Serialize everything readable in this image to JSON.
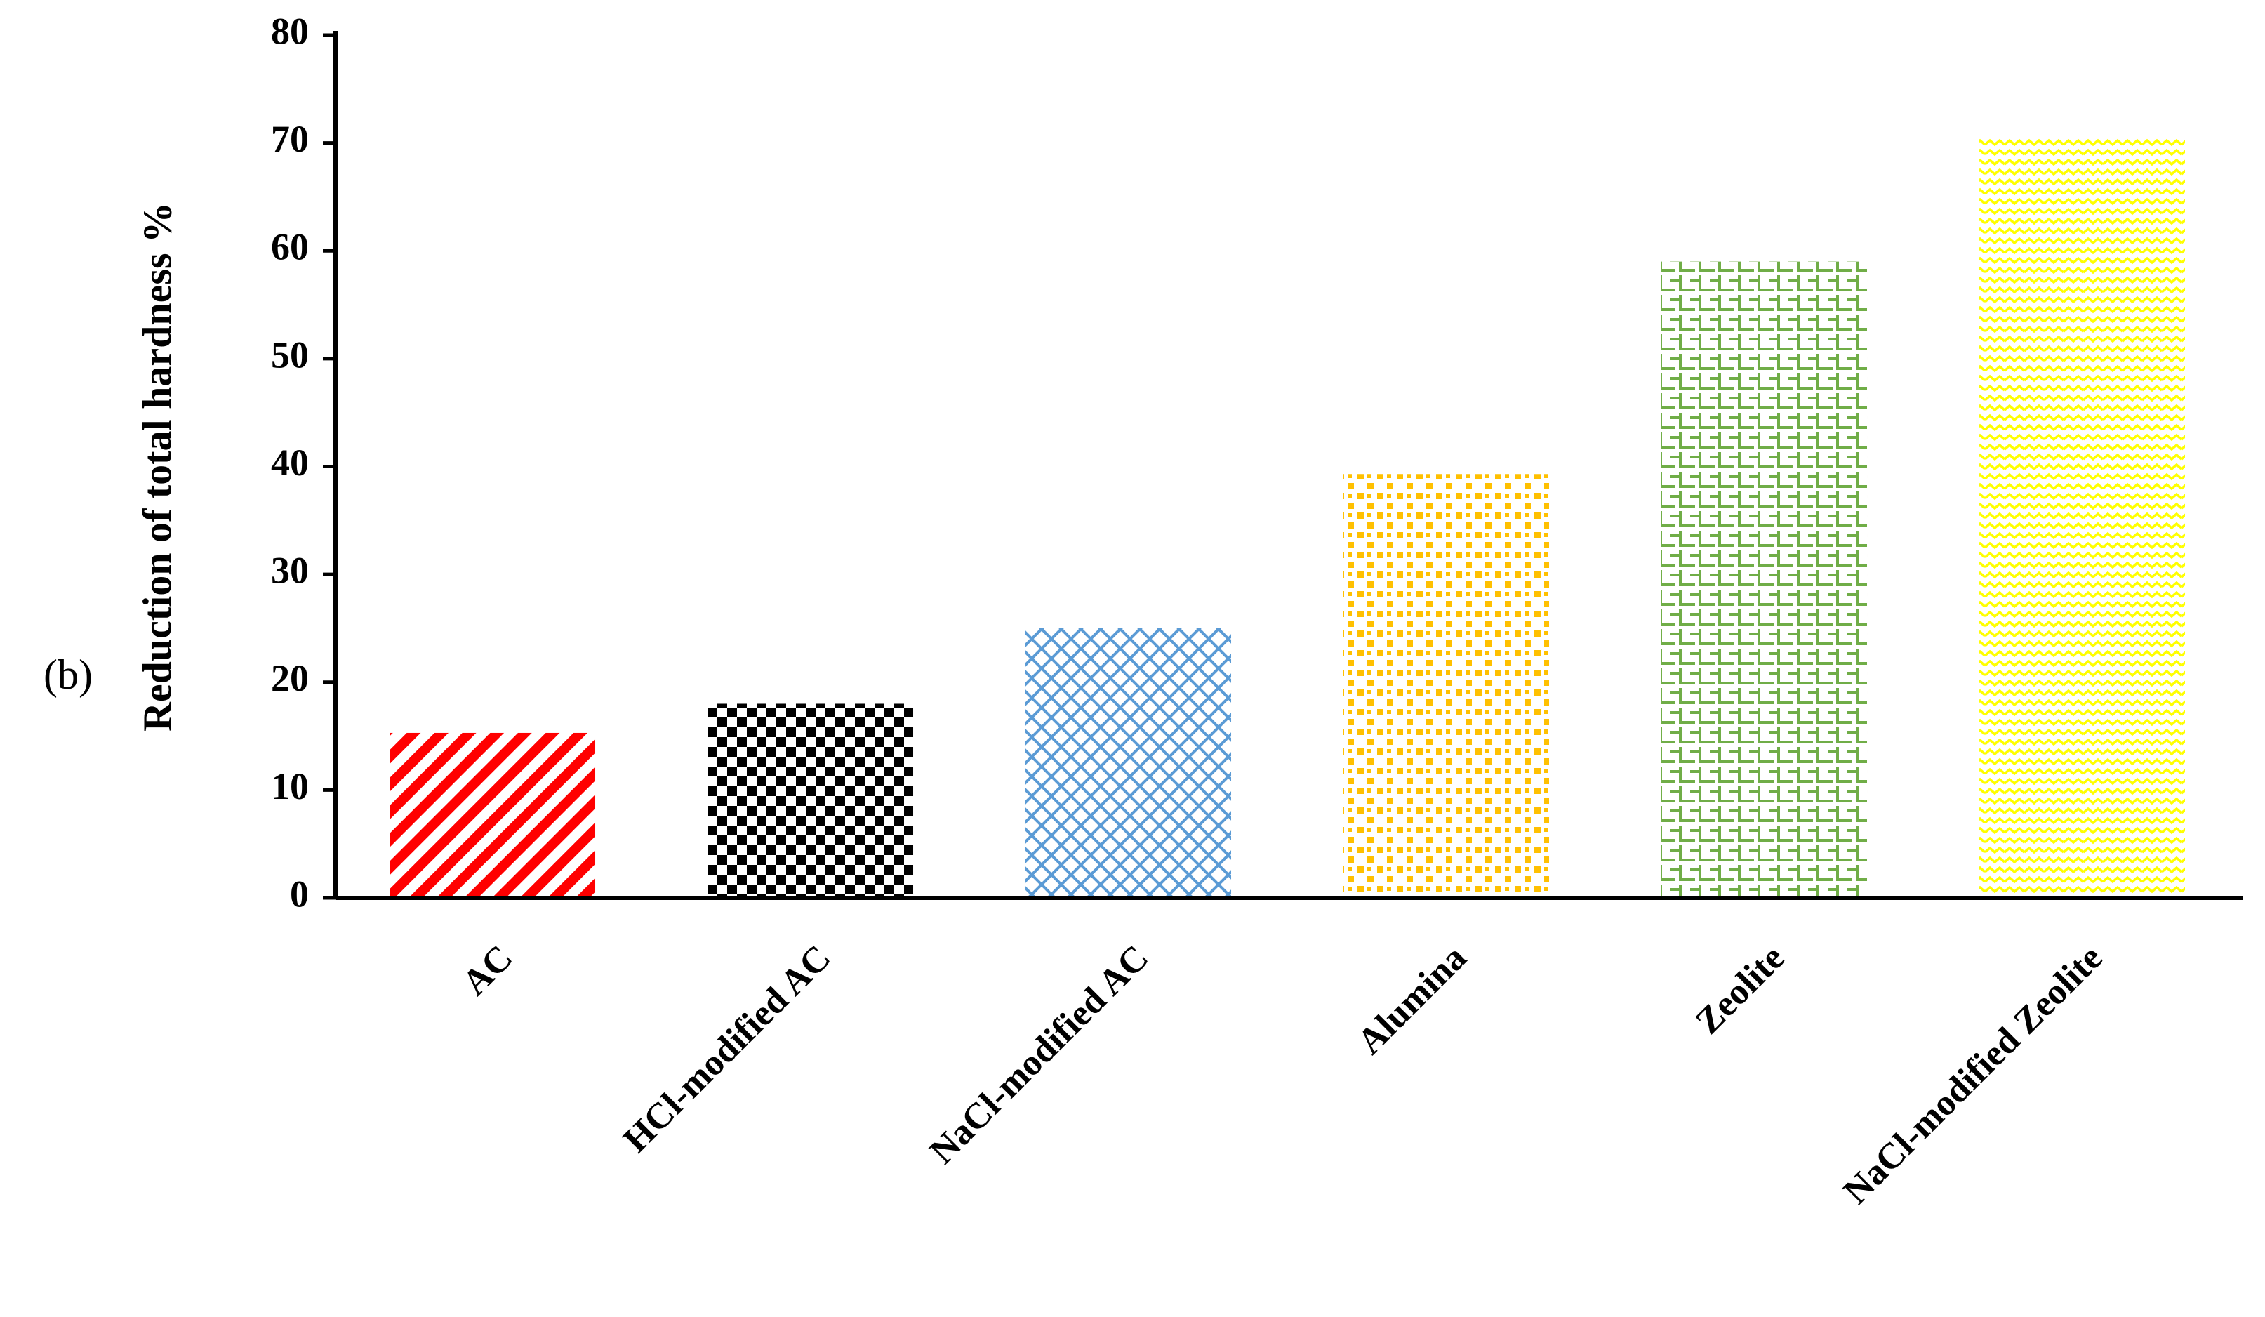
{
  "chart_data": {
    "type": "bar",
    "panel_label": "(b)",
    "y_label": "Reduction of total hardness %",
    "categories": [
      "AC",
      "HCl-modified AC",
      "NaCl-modified AC",
      "Alumina",
      "Zeolite",
      "NaCl-modified Zeolite"
    ],
    "values": [
      15.3,
      18,
      25,
      39.3,
      59,
      70.5
    ],
    "colors": [
      "#ff0000",
      "#000000",
      "#5b9bd5",
      "#ffc000",
      "#70ad47",
      "#ffff00"
    ],
    "ylim": [
      0,
      80
    ],
    "yticks": [
      0,
      10,
      20,
      30,
      40,
      50,
      60,
      70,
      80
    ]
  }
}
